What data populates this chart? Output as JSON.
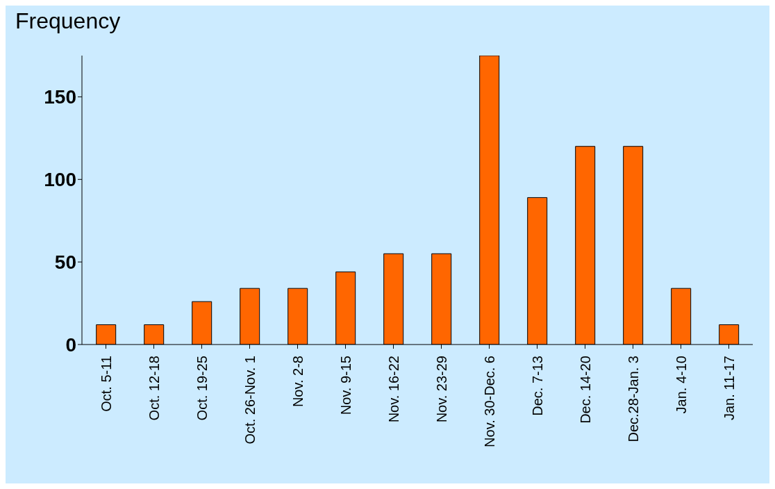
{
  "chart_data": {
    "type": "bar",
    "ylabel": "Frequency",
    "categories": [
      "Oct. 5-11",
      "Oct. 12-18",
      "Oct. 19-25",
      "Oct. 26-Nov. 1",
      "Nov. 2-8",
      "Nov. 9-15",
      "Nov. 16-22",
      "Nov. 23-29",
      "Nov. 30-Dec. 6",
      "Dec. 7-13",
      "Dec. 14-20",
      "Dec.28-Jan. 3",
      "Jan. 4-10",
      "Jan. 11-17"
    ],
    "values": [
      12,
      12,
      26,
      34,
      34,
      44,
      55,
      55,
      175,
      89,
      120,
      120,
      34,
      12
    ],
    "color": "#ff6600",
    "ylim": [
      0,
      175
    ],
    "yticks": [
      0,
      50,
      100,
      150
    ],
    "grid": false
  }
}
